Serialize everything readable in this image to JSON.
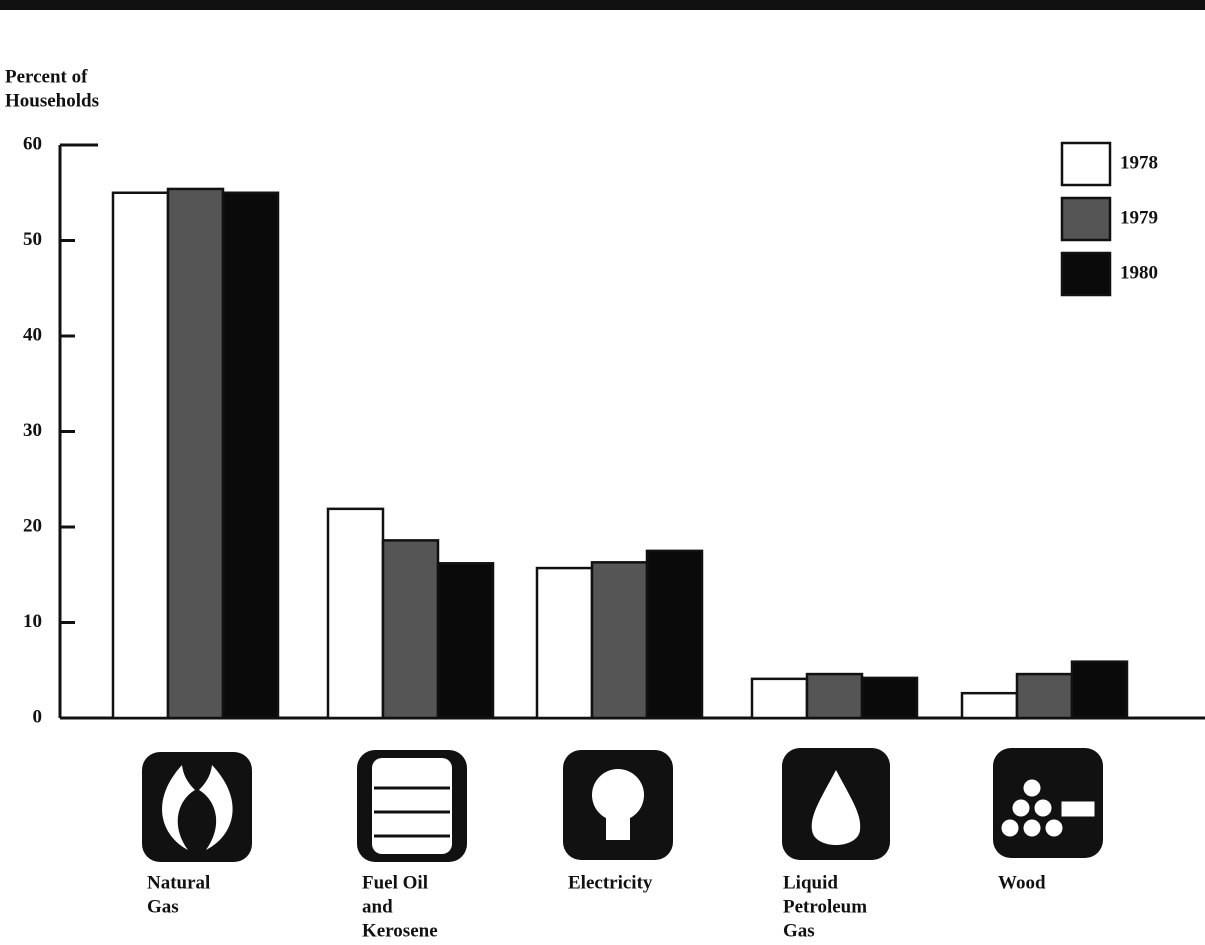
{
  "chart_data": {
    "type": "bar",
    "y_label": [
      "Percent of",
      "Households"
    ],
    "categories": [
      [
        "Natural",
        "Gas"
      ],
      [
        "Fuel Oil",
        "and",
        "Kerosene"
      ],
      [
        "Electricity"
      ],
      [
        "Liquid",
        "Petroleum",
        "Gas"
      ],
      [
        "Wood"
      ]
    ],
    "series": [
      {
        "name": "1978",
        "color": "#ffffff",
        "values": [
          55.0,
          21.9,
          15.7,
          4.1,
          2.6
        ]
      },
      {
        "name": "1979",
        "color": "#555555",
        "values": [
          55.4,
          18.6,
          16.3,
          4.6,
          4.6
        ]
      },
      {
        "name": "1980",
        "color": "#0a0a0a",
        "values": [
          55.0,
          16.2,
          17.5,
          4.2,
          5.9
        ]
      }
    ],
    "ylim": [
      0,
      60
    ],
    "yticks": [
      0,
      10,
      20,
      30,
      40,
      50,
      60
    ],
    "legend": "upper right"
  }
}
